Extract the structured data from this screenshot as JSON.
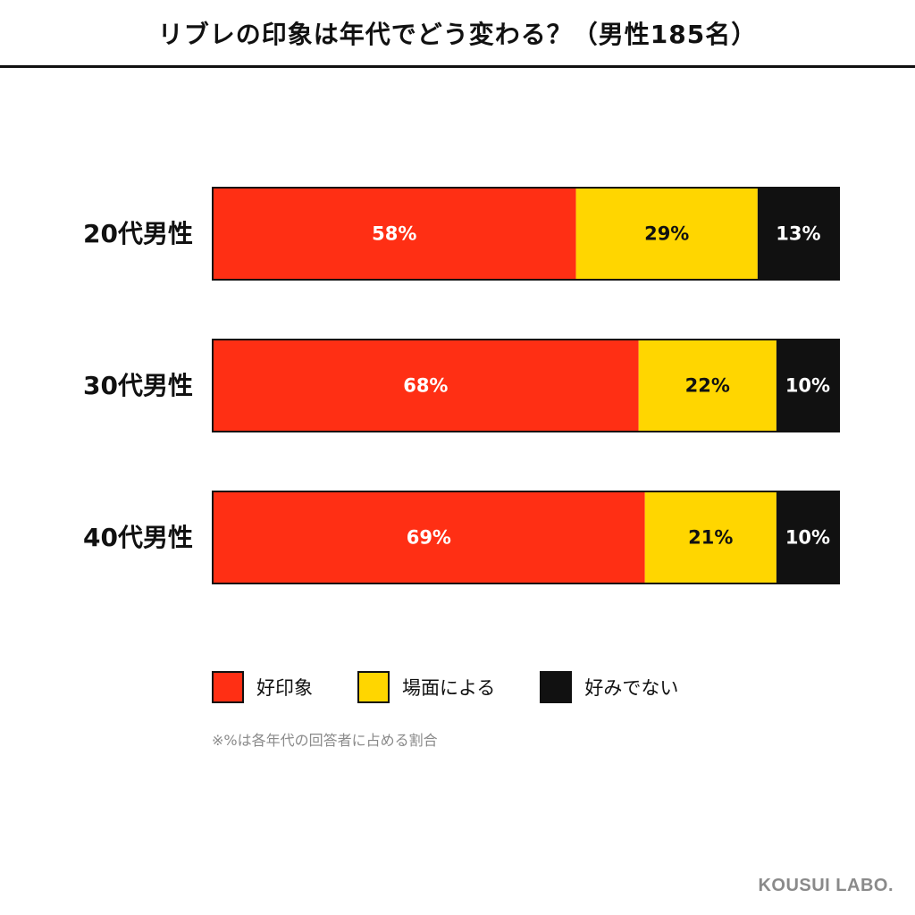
{
  "title": "リブレの印象は年代でどう変わる？（男性185名）",
  "chart_data": {
    "type": "bar",
    "orientation": "horizontal",
    "stacked": true,
    "unit": "%",
    "categories": [
      "20代男性",
      "30代男性",
      "40代男性"
    ],
    "series": [
      {
        "name": "好印象",
        "color": "#ff2f14",
        "label_color": "#ffffff",
        "values": [
          58,
          68,
          69
        ]
      },
      {
        "name": "場面による",
        "color": "#ffd600",
        "label_color": "#111111",
        "values": [
          29,
          22,
          21
        ]
      },
      {
        "name": "好みでない",
        "color": "#111111",
        "label_color": "#ffffff",
        "values": [
          13,
          10,
          10
        ]
      }
    ],
    "xlim": [
      0,
      100
    ],
    "grid": false,
    "legend_position": "bottom"
  },
  "note": "※%は各年代の回答者に占める割合",
  "brand": "KOUSUI LABO."
}
